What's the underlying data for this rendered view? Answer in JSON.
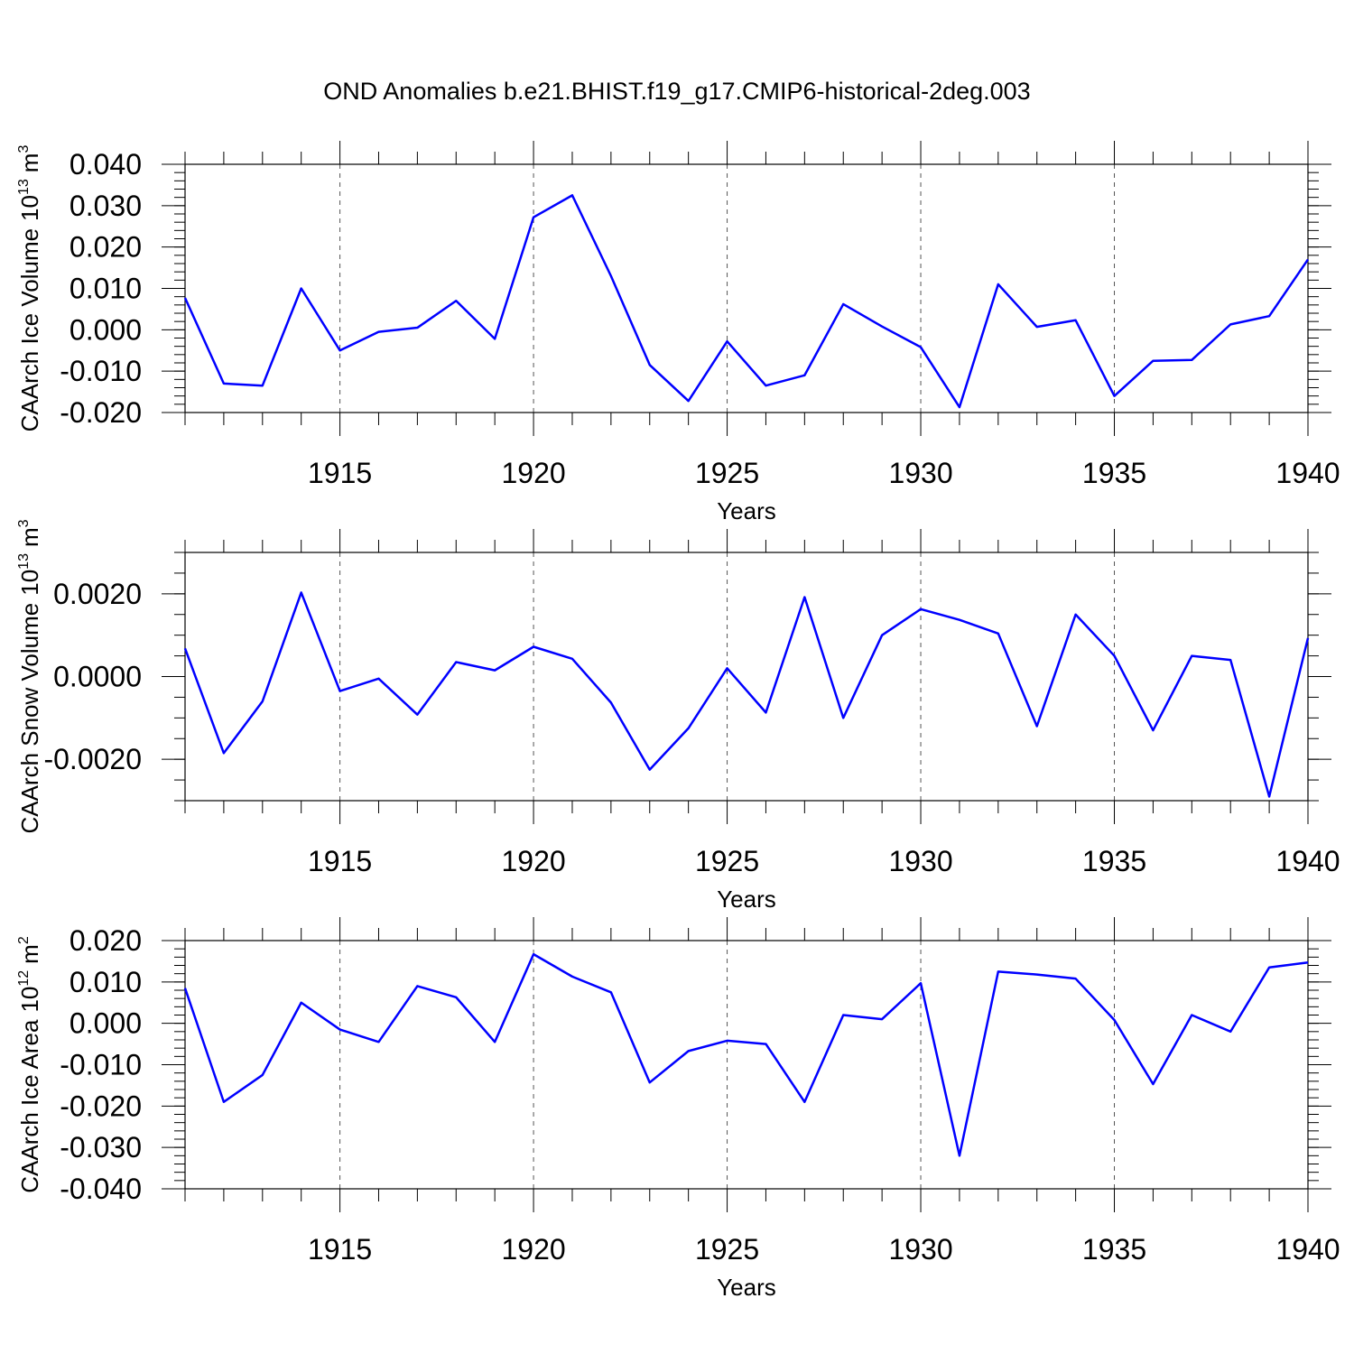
{
  "chart_data": {
    "title": "OND Anomalies b.e21.BHIST.f19_g17.CMIP6-historical-2deg.003",
    "type": "line",
    "x": [
      1911,
      1912,
      1913,
      1914,
      1915,
      1916,
      1917,
      1918,
      1919,
      1920,
      1921,
      1922,
      1923,
      1924,
      1925,
      1926,
      1927,
      1928,
      1929,
      1930,
      1931,
      1932,
      1933,
      1934,
      1935,
      1936,
      1937,
      1938,
      1939,
      1940
    ],
    "xlim": [
      1911,
      1940
    ],
    "xticks": [
      1915,
      1920,
      1925,
      1930,
      1935,
      1940
    ],
    "xlabel": "Years",
    "color": "#0000ff",
    "panels": [
      {
        "name": "ice-volume",
        "ylabel": "CAArch Ice Volume",
        "units_base": "10",
        "units_exp": "13",
        "units_unit": "m",
        "units_pow": "3",
        "ylim": [
          -0.02,
          0.04
        ],
        "yticks": [
          0.04,
          0.03,
          0.02,
          0.01,
          0.0,
          -0.01,
          -0.02
        ],
        "ytick_labels": [
          "0.040",
          "0.030",
          "0.020",
          "0.010",
          "0.000",
          "-0.010",
          "-0.020"
        ],
        "minor_step": 0.002,
        "values": [
          0.0077,
          -0.013,
          -0.0135,
          0.01,
          -0.005,
          -0.0005,
          0.0005,
          0.007,
          -0.0022,
          0.0272,
          0.0325,
          0.013,
          -0.0085,
          -0.0172,
          -0.0028,
          -0.0135,
          -0.011,
          0.0062,
          0.0008,
          -0.0042,
          -0.0187,
          0.011,
          0.0007,
          0.0023,
          -0.016,
          -0.0075,
          -0.0073,
          0.0013,
          0.0033,
          0.017
        ]
      },
      {
        "name": "snow-volume",
        "ylabel": "CAArch Snow Volume",
        "units_base": "10",
        "units_exp": "13",
        "units_unit": "m",
        "units_pow": "3",
        "ylim": [
          -0.003,
          0.003
        ],
        "yticks": [
          0.002,
          0.0,
          -0.002
        ],
        "ytick_labels": [
          "0.0020",
          "0.0000",
          "-0.0020"
        ],
        "minor_step": 0.0005,
        "values": [
          0.00068,
          -0.00185,
          -0.0006,
          0.00203,
          -0.00035,
          -5e-05,
          -0.00092,
          0.00035,
          0.00015,
          0.00072,
          0.00043,
          -0.00063,
          -0.00225,
          -0.00125,
          0.0002,
          -0.00087,
          0.00192,
          -0.001,
          0.001,
          0.00163,
          0.00137,
          0.00104,
          -0.0012,
          0.0015,
          0.0005,
          -0.0013,
          0.0005,
          0.0004,
          -0.0029,
          0.00093
        ]
      },
      {
        "name": "ice-area",
        "ylabel": "CAArch Ice Area",
        "units_base": "10",
        "units_exp": "12",
        "units_unit": "m",
        "units_pow": "2",
        "ylim": [
          -0.04,
          0.02
        ],
        "yticks": [
          0.02,
          0.01,
          0.0,
          -0.01,
          -0.02,
          -0.03,
          -0.04
        ],
        "ytick_labels": [
          "0.020",
          "0.010",
          "0.000",
          "-0.010",
          "-0.020",
          "-0.030",
          "-0.040"
        ],
        "minor_step": 0.002,
        "values": [
          0.0085,
          -0.019,
          -0.0125,
          0.005,
          -0.0015,
          -0.0045,
          0.009,
          0.0063,
          -0.0045,
          0.0167,
          0.0113,
          0.0075,
          -0.0143,
          -0.0067,
          -0.0042,
          -0.005,
          -0.019,
          0.002,
          0.001,
          0.0097,
          -0.032,
          0.0125,
          0.0118,
          0.0108,
          0.0008,
          -0.0147,
          0.002,
          -0.002,
          0.0135,
          0.0147
        ]
      }
    ]
  }
}
